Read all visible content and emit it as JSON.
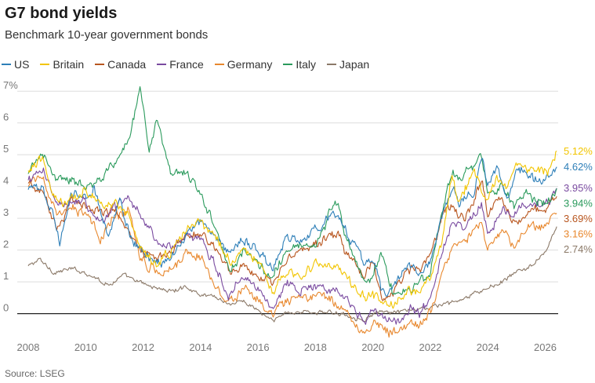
{
  "header": {
    "title": "G7 bond yields",
    "subtitle": "Benchmark 10-year government bonds"
  },
  "footer": {
    "source": "Source: LSEG"
  },
  "chart_data": {
    "type": "line",
    "title": "G7 bond yields",
    "subtitle": "Benchmark 10-year government bonds",
    "xlabel": "",
    "ylabel": "",
    "xlim": [
      2008.0,
      2026.45
    ],
    "ylim": [
      -0.8,
      7.4
    ],
    "x_ticks": [
      "2008",
      "2010",
      "2012",
      "2014",
      "2016",
      "2018",
      "2020",
      "2022",
      "2024",
      "2026"
    ],
    "y_ticks": [
      "7%",
      "6",
      "5",
      "4",
      "3",
      "2",
      "1",
      "0"
    ],
    "grid": "horizontal",
    "legend": "top-left",
    "series": [
      {
        "name": "US",
        "color": "#2e7fb8",
        "end_label": "4.62%",
        "points": [
          [
            2008.0,
            3.9
          ],
          [
            2008.5,
            4.0
          ],
          [
            2008.9,
            3.0
          ],
          [
            2009.1,
            2.3
          ],
          [
            2009.5,
            3.7
          ],
          [
            2010.0,
            3.7
          ],
          [
            2010.3,
            3.9
          ],
          [
            2010.8,
            2.5
          ],
          [
            2011.2,
            3.5
          ],
          [
            2011.6,
            2.3
          ],
          [
            2012.0,
            1.95
          ],
          [
            2012.5,
            1.55
          ],
          [
            2013.0,
            1.8
          ],
          [
            2013.5,
            2.5
          ],
          [
            2014.0,
            2.9
          ],
          [
            2014.5,
            2.5
          ],
          [
            2015.0,
            1.9
          ],
          [
            2015.5,
            2.3
          ],
          [
            2016.0,
            2.1
          ],
          [
            2016.5,
            1.4
          ],
          [
            2017.0,
            2.4
          ],
          [
            2017.5,
            2.3
          ],
          [
            2018.0,
            2.6
          ],
          [
            2018.8,
            3.2
          ],
          [
            2019.0,
            2.7
          ],
          [
            2019.7,
            1.6
          ],
          [
            2020.0,
            1.8
          ],
          [
            2020.3,
            0.7
          ],
          [
            2020.6,
            0.6
          ],
          [
            2021.2,
            1.6
          ],
          [
            2021.6,
            1.3
          ],
          [
            2022.0,
            1.7
          ],
          [
            2022.3,
            2.8
          ],
          [
            2022.8,
            4.1
          ],
          [
            2023.0,
            3.5
          ],
          [
            2023.5,
            3.8
          ],
          [
            2023.8,
            4.9
          ],
          [
            2024.0,
            4.0
          ],
          [
            2024.3,
            4.6
          ],
          [
            2024.7,
            3.7
          ],
          [
            2025.0,
            4.6
          ],
          [
            2025.5,
            4.3
          ],
          [
            2025.9,
            4.1
          ],
          [
            2026.2,
            4.3
          ],
          [
            2026.4,
            4.62
          ]
        ]
      },
      {
        "name": "Britain",
        "color": "#f2c500",
        "end_label": "5.12%",
        "points": [
          [
            2008.0,
            4.5
          ],
          [
            2008.5,
            4.9
          ],
          [
            2008.9,
            3.6
          ],
          [
            2009.3,
            3.4
          ],
          [
            2009.7,
            3.7
          ],
          [
            2010.0,
            4.0
          ],
          [
            2010.5,
            3.4
          ],
          [
            2011.0,
            3.6
          ],
          [
            2011.5,
            3.1
          ],
          [
            2011.9,
            2.1
          ],
          [
            2012.5,
            1.6
          ],
          [
            2013.0,
            2.0
          ],
          [
            2013.7,
            2.9
          ],
          [
            2014.0,
            2.8
          ],
          [
            2014.5,
            2.4
          ],
          [
            2015.0,
            1.6
          ],
          [
            2015.5,
            2.0
          ],
          [
            2016.0,
            1.7
          ],
          [
            2016.5,
            0.6
          ],
          [
            2017.0,
            1.3
          ],
          [
            2017.5,
            1.2
          ],
          [
            2018.0,
            1.5
          ],
          [
            2018.8,
            1.4
          ],
          [
            2019.0,
            1.2
          ],
          [
            2019.7,
            0.5
          ],
          [
            2020.0,
            0.6
          ],
          [
            2020.3,
            0.3
          ],
          [
            2020.7,
            0.2
          ],
          [
            2021.2,
            0.8
          ],
          [
            2021.6,
            0.6
          ],
          [
            2022.0,
            1.2
          ],
          [
            2022.4,
            2.2
          ],
          [
            2022.75,
            4.4
          ],
          [
            2023.0,
            3.4
          ],
          [
            2023.5,
            4.6
          ],
          [
            2023.9,
            3.6
          ],
          [
            2024.3,
            4.3
          ],
          [
            2024.7,
            3.9
          ],
          [
            2025.0,
            4.8
          ],
          [
            2025.3,
            4.5
          ],
          [
            2025.8,
            4.6
          ],
          [
            2026.1,
            4.4
          ],
          [
            2026.4,
            5.12
          ]
        ]
      },
      {
        "name": "Canada",
        "color": "#b8561f",
        "end_label": "3.69%",
        "points": [
          [
            2008.0,
            4.1
          ],
          [
            2008.5,
            3.8
          ],
          [
            2009.0,
            2.7
          ],
          [
            2009.5,
            3.5
          ],
          [
            2010.0,
            3.5
          ],
          [
            2010.5,
            3.2
          ],
          [
            2011.0,
            3.3
          ],
          [
            2011.5,
            2.6
          ],
          [
            2012.0,
            2.0
          ],
          [
            2012.5,
            1.7
          ],
          [
            2013.0,
            1.9
          ],
          [
            2013.5,
            2.5
          ],
          [
            2014.0,
            2.5
          ],
          [
            2014.5,
            2.1
          ],
          [
            2015.0,
            1.4
          ],
          [
            2015.5,
            1.5
          ],
          [
            2016.0,
            1.2
          ],
          [
            2016.5,
            1.0
          ],
          [
            2017.0,
            1.8
          ],
          [
            2017.5,
            1.9
          ],
          [
            2018.0,
            2.2
          ],
          [
            2018.8,
            2.5
          ],
          [
            2019.0,
            2.0
          ],
          [
            2019.7,
            1.2
          ],
          [
            2020.0,
            1.5
          ],
          [
            2020.3,
            0.6
          ],
          [
            2020.7,
            0.5
          ],
          [
            2021.2,
            1.5
          ],
          [
            2021.6,
            1.3
          ],
          [
            2022.0,
            1.8
          ],
          [
            2022.5,
            3.3
          ],
          [
            2022.8,
            3.4
          ],
          [
            2023.2,
            2.9
          ],
          [
            2023.8,
            4.2
          ],
          [
            2024.0,
            3.2
          ],
          [
            2024.5,
            3.6
          ],
          [
            2024.8,
            3.0
          ],
          [
            2025.2,
            3.0
          ],
          [
            2025.6,
            3.3
          ],
          [
            2026.0,
            3.2
          ],
          [
            2026.4,
            3.69
          ]
        ]
      },
      {
        "name": "France",
        "color": "#7a4ba0",
        "end_label": "3.95%",
        "points": [
          [
            2008.0,
            4.2
          ],
          [
            2008.5,
            4.5
          ],
          [
            2009.0,
            3.4
          ],
          [
            2009.5,
            3.6
          ],
          [
            2010.0,
            3.5
          ],
          [
            2010.5,
            2.8
          ],
          [
            2011.0,
            3.4
          ],
          [
            2011.5,
            3.6
          ],
          [
            2011.9,
            3.2
          ],
          [
            2012.5,
            2.2
          ],
          [
            2013.0,
            2.1
          ],
          [
            2013.5,
            2.4
          ],
          [
            2014.0,
            2.3
          ],
          [
            2014.5,
            1.5
          ],
          [
            2015.0,
            0.6
          ],
          [
            2015.5,
            1.2
          ],
          [
            2016.0,
            0.8
          ],
          [
            2016.5,
            0.2
          ],
          [
            2017.0,
            1.0
          ],
          [
            2017.5,
            0.8
          ],
          [
            2018.0,
            0.9
          ],
          [
            2018.8,
            0.7
          ],
          [
            2019.0,
            0.5
          ],
          [
            2019.7,
            -0.3
          ],
          [
            2020.0,
            0.1
          ],
          [
            2020.5,
            -0.2
          ],
          [
            2020.9,
            -0.35
          ],
          [
            2021.3,
            0.2
          ],
          [
            2021.6,
            0.0
          ],
          [
            2022.0,
            0.4
          ],
          [
            2022.5,
            2.2
          ],
          [
            2022.8,
            2.9
          ],
          [
            2023.2,
            2.7
          ],
          [
            2023.8,
            3.5
          ],
          [
            2024.0,
            2.6
          ],
          [
            2024.5,
            3.3
          ],
          [
            2024.9,
            3.0
          ],
          [
            2025.3,
            3.4
          ],
          [
            2025.7,
            3.5
          ],
          [
            2026.1,
            3.5
          ],
          [
            2026.4,
            3.95
          ]
        ]
      },
      {
        "name": "Germany",
        "color": "#e8882e",
        "end_label": "3.16%",
        "points": [
          [
            2008.0,
            4.0
          ],
          [
            2008.5,
            4.4
          ],
          [
            2009.0,
            3.0
          ],
          [
            2009.5,
            3.3
          ],
          [
            2010.0,
            3.2
          ],
          [
            2010.5,
            2.3
          ],
          [
            2011.0,
            3.1
          ],
          [
            2011.5,
            3.3
          ],
          [
            2011.9,
            1.8
          ],
          [
            2012.5,
            1.3
          ],
          [
            2013.0,
            1.5
          ],
          [
            2013.5,
            1.9
          ],
          [
            2014.0,
            1.8
          ],
          [
            2014.5,
            1.0
          ],
          [
            2015.0,
            0.3
          ],
          [
            2015.5,
            0.8
          ],
          [
            2016.0,
            0.4
          ],
          [
            2016.5,
            -0.1
          ],
          [
            2017.0,
            0.4
          ],
          [
            2017.5,
            0.4
          ],
          [
            2018.0,
            0.6
          ],
          [
            2018.8,
            0.3
          ],
          [
            2019.0,
            0.1
          ],
          [
            2019.7,
            -0.6
          ],
          [
            2020.0,
            -0.3
          ],
          [
            2020.5,
            -0.5
          ],
          [
            2020.9,
            -0.6
          ],
          [
            2021.3,
            -0.2
          ],
          [
            2021.6,
            -0.4
          ],
          [
            2022.0,
            0.0
          ],
          [
            2022.5,
            1.5
          ],
          [
            2022.8,
            2.3
          ],
          [
            2023.2,
            2.3
          ],
          [
            2023.8,
            2.9
          ],
          [
            2024.0,
            2.0
          ],
          [
            2024.5,
            2.6
          ],
          [
            2024.9,
            2.1
          ],
          [
            2025.3,
            2.6
          ],
          [
            2025.7,
            2.7
          ],
          [
            2026.1,
            2.8
          ],
          [
            2026.4,
            3.16
          ]
        ]
      },
      {
        "name": "Italy",
        "color": "#2a9a5c",
        "end_label": "3.94%",
        "points": [
          [
            2008.0,
            4.4
          ],
          [
            2008.5,
            5.0
          ],
          [
            2009.0,
            4.3
          ],
          [
            2009.5,
            4.2
          ],
          [
            2010.0,
            4.0
          ],
          [
            2010.5,
            4.2
          ],
          [
            2011.0,
            4.7
          ],
          [
            2011.5,
            5.4
          ],
          [
            2011.8,
            6.8
          ],
          [
            2011.9,
            7.2
          ],
          [
            2012.2,
            5.2
          ],
          [
            2012.5,
            6.2
          ],
          [
            2012.8,
            5.0
          ],
          [
            2013.0,
            4.4
          ],
          [
            2013.5,
            4.4
          ],
          [
            2014.0,
            3.8
          ],
          [
            2014.5,
            2.8
          ],
          [
            2015.0,
            1.4
          ],
          [
            2015.5,
            2.0
          ],
          [
            2016.0,
            1.5
          ],
          [
            2016.5,
            1.2
          ],
          [
            2017.0,
            2.0
          ],
          [
            2017.5,
            2.2
          ],
          [
            2018.0,
            2.0
          ],
          [
            2018.5,
            3.2
          ],
          [
            2018.8,
            3.5
          ],
          [
            2019.0,
            2.7
          ],
          [
            2019.7,
            0.9
          ],
          [
            2020.0,
            1.3
          ],
          [
            2020.3,
            1.8
          ],
          [
            2020.7,
            0.7
          ],
          [
            2021.0,
            0.6
          ],
          [
            2021.5,
            0.9
          ],
          [
            2022.0,
            1.3
          ],
          [
            2022.5,
            3.5
          ],
          [
            2022.8,
            4.5
          ],
          [
            2023.0,
            4.2
          ],
          [
            2023.8,
            4.9
          ],
          [
            2024.0,
            3.8
          ],
          [
            2024.5,
            4.0
          ],
          [
            2024.9,
            3.4
          ],
          [
            2025.3,
            3.8
          ],
          [
            2025.7,
            3.6
          ],
          [
            2026.1,
            3.5
          ],
          [
            2026.4,
            3.94
          ]
        ]
      },
      {
        "name": "Japan",
        "color": "#8b7968",
        "end_label": "2.74%",
        "points": [
          [
            2008.0,
            1.5
          ],
          [
            2008.4,
            1.7
          ],
          [
            2008.9,
            1.3
          ],
          [
            2009.5,
            1.4
          ],
          [
            2010.0,
            1.3
          ],
          [
            2010.8,
            0.9
          ],
          [
            2011.3,
            1.2
          ],
          [
            2011.8,
            1.0
          ],
          [
            2012.5,
            0.8
          ],
          [
            2013.0,
            0.7
          ],
          [
            2013.5,
            0.85
          ],
          [
            2014.0,
            0.6
          ],
          [
            2014.5,
            0.55
          ],
          [
            2015.0,
            0.3
          ],
          [
            2015.5,
            0.4
          ],
          [
            2016.0,
            0.1
          ],
          [
            2016.5,
            -0.25
          ],
          [
            2017.0,
            0.05
          ],
          [
            2018.0,
            0.05
          ],
          [
            2019.0,
            0.0
          ],
          [
            2019.7,
            -0.2
          ],
          [
            2020.0,
            0.0
          ],
          [
            2021.0,
            0.05
          ],
          [
            2022.0,
            0.2
          ],
          [
            2023.0,
            0.4
          ],
          [
            2024.0,
            0.8
          ],
          [
            2024.5,
            1.0
          ],
          [
            2025.0,
            1.3
          ],
          [
            2025.5,
            1.5
          ],
          [
            2026.0,
            1.9
          ],
          [
            2026.4,
            2.74
          ]
        ]
      }
    ]
  }
}
